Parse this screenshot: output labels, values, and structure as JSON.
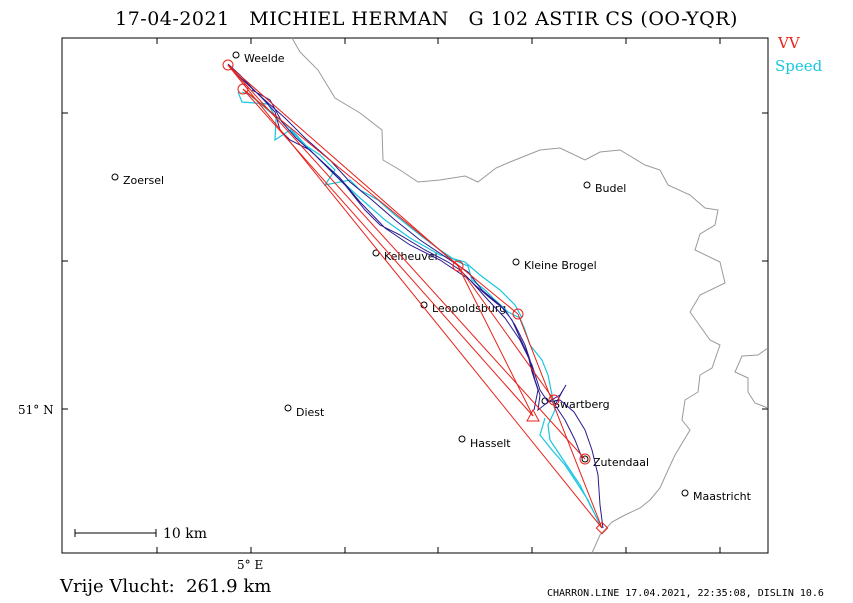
{
  "header": {
    "title": "17-04-2021   MICHIEL HERMAN   G 102 ASTIR CS (OO-YQR)"
  },
  "legend": {
    "vv_label": "VV",
    "speed_label": "Speed",
    "vv_color": "#e8211a",
    "speed_color": "#19c6e0",
    "track_color": "#2a1a8c"
  },
  "axes": {
    "lat_label": "51° N",
    "lon_label": "5° E"
  },
  "scale": {
    "label": "10 km"
  },
  "towns": [
    {
      "name": "Weelde"
    },
    {
      "name": "Zoersel"
    },
    {
      "name": "Budel"
    },
    {
      "name": "Kelheuvel"
    },
    {
      "name": "Kleine Brogel"
    },
    {
      "name": "Leopoldsburg"
    },
    {
      "name": "Swartberg"
    },
    {
      "name": "Diest"
    },
    {
      "name": "Hasselt"
    },
    {
      "name": "Zutendaal"
    },
    {
      "name": "Maastricht"
    }
  ],
  "footer": {
    "distance": "Vrije Vlucht:  261.9 km",
    "credit": "CHARRON.LINE 17.04.2021, 22:35:08, DISLIN 10.6"
  }
}
